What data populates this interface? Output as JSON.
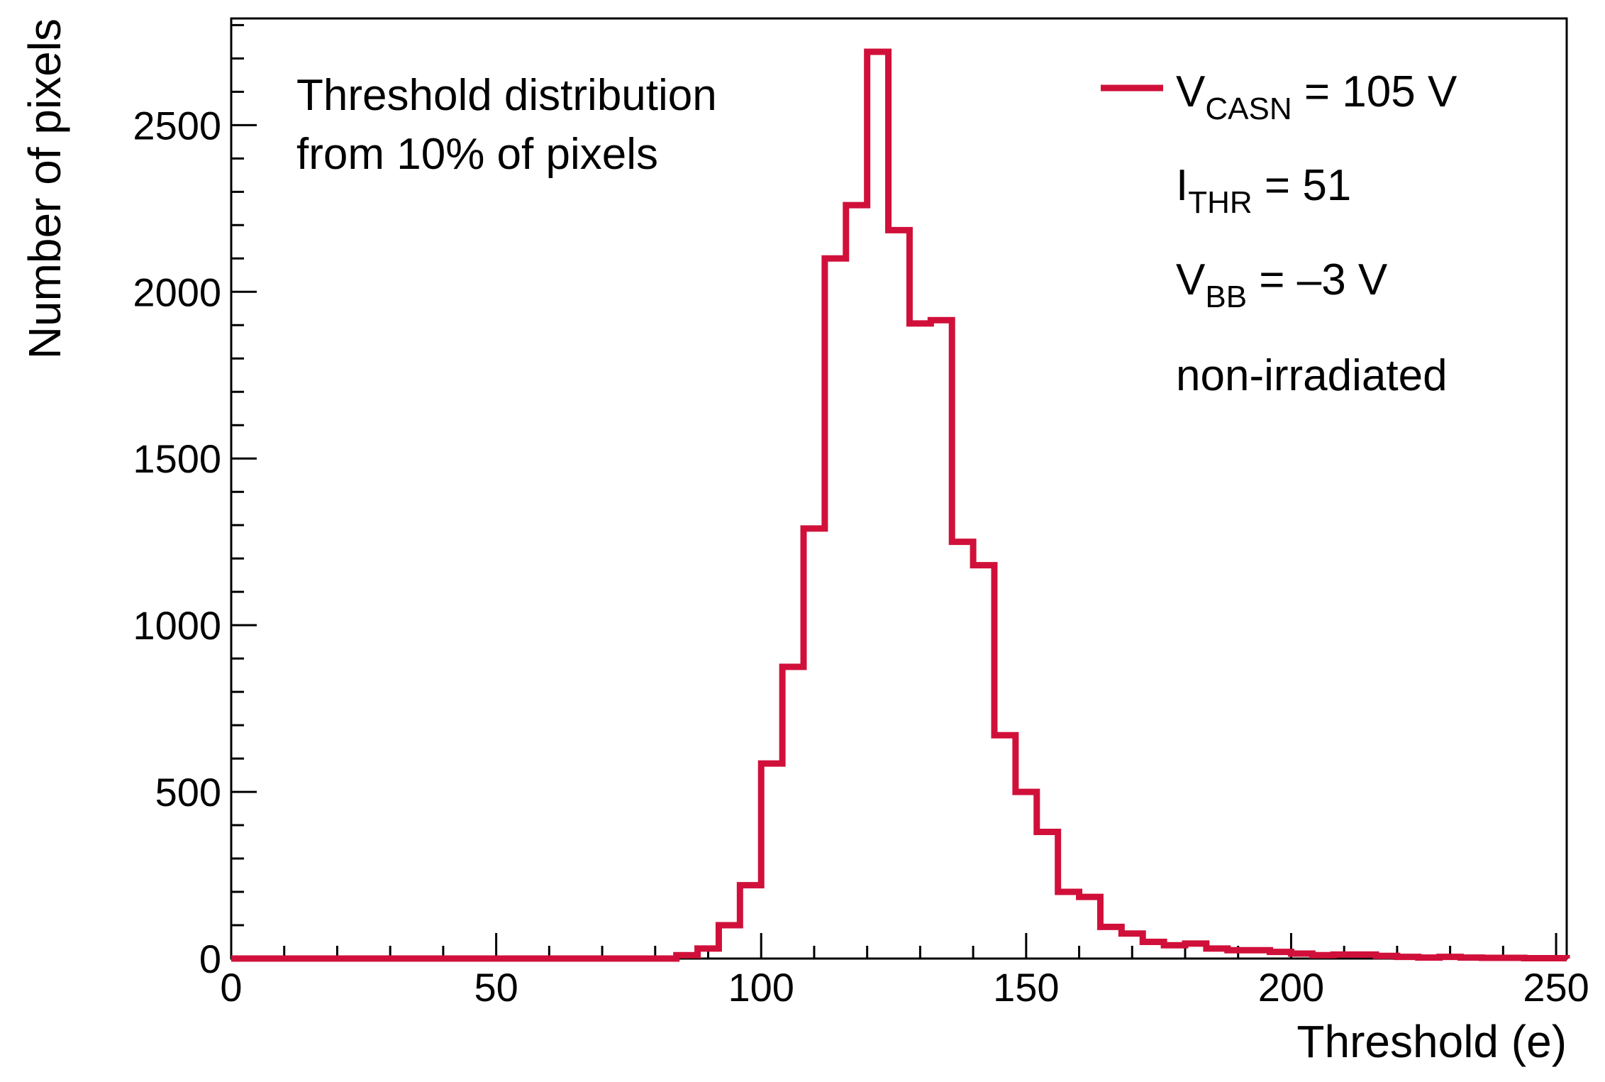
{
  "chart_data": {
    "type": "histogram",
    "xlabel": "Threshold (e)",
    "ylabel": "Number of pixels",
    "xlim": [
      0,
      252
    ],
    "ylim": [
      0,
      2820
    ],
    "x_ticks": [
      0,
      50,
      100,
      150,
      200,
      250
    ],
    "y_ticks": [
      0,
      500,
      1000,
      1500,
      2000,
      2500
    ],
    "bin_width": 4,
    "series": [
      {
        "name": "V_CASN = 105 V",
        "color": "#d0103a",
        "bin_edges_start": 0,
        "values": [
          0,
          0,
          0,
          0,
          0,
          0,
          0,
          0,
          0,
          0,
          0,
          0,
          0,
          0,
          0,
          0,
          0,
          0,
          0,
          0,
          0,
          10,
          30,
          100,
          220,
          585,
          875,
          1290,
          2100,
          2260,
          2720,
          2185,
          1905,
          1915,
          1250,
          1180,
          670,
          500,
          380,
          200,
          185,
          95,
          75,
          50,
          40,
          45,
          30,
          25,
          25,
          20,
          15,
          10,
          12,
          12,
          8,
          5,
          3,
          5,
          3,
          2,
          2,
          1,
          1
        ]
      }
    ],
    "annotation": {
      "line1": "Threshold distribution",
      "line2": "from 10% of pixels"
    },
    "legend": {
      "placement": "top-right",
      "entry_main": "V",
      "entry_sub": "CASN",
      "entry_rest": " = 105 V",
      "ithr_main": "I",
      "ithr_sub": "THR",
      "ithr_rest": " = 51",
      "vbb_main": "V",
      "vbb_sub": "BB",
      "vbb_rest": " = –3 V",
      "status": "non-irradiated"
    }
  }
}
